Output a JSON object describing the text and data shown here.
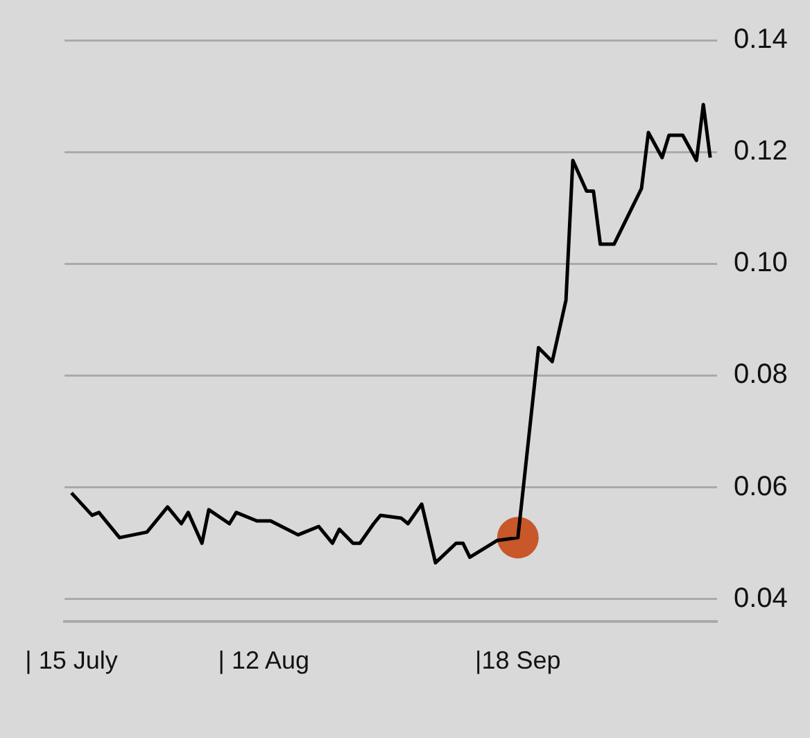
{
  "chart_data": {
    "type": "line",
    "x": [
      "--07-15",
      "--07-18",
      "--07-19",
      "--07-22",
      "--07-26",
      "--07-29",
      "--07-31",
      "--08-01",
      "--08-03",
      "--08-04",
      "--08-07",
      "--08-08",
      "--08-11",
      "--08-13",
      "--08-17",
      "--08-20",
      "--08-22",
      "--08-23",
      "--08-25",
      "--08-26",
      "--08-28",
      "--08-29",
      "--09-01",
      "--09-02",
      "--09-04",
      "--09-06",
      "--09-09",
      "--09-10",
      "--09-11",
      "--09-15",
      "--09-18",
      "--09-21",
      "--09-23",
      "--09-25",
      "--09-26",
      "--09-28",
      "--09-29",
      "--09-30",
      "--10-02",
      "--10-06",
      "--10-07",
      "--10-09",
      "--10-10",
      "--10-12",
      "--10-14",
      "--10-15",
      "--10-16"
    ],
    "series": [
      {
        "color": "#000000",
        "values": [
          0.059,
          0.055,
          0.0555,
          0.051,
          0.052,
          0.0565,
          0.0535,
          0.0555,
          0.05,
          0.056,
          0.0535,
          0.0555,
          0.054,
          0.054,
          0.0515,
          0.053,
          0.05,
          0.0525,
          0.05,
          0.05,
          0.0535,
          0.055,
          0.0545,
          0.0535,
          0.057,
          0.0465,
          0.05,
          0.05,
          0.0475,
          0.0505,
          0.051,
          0.085,
          0.0825,
          0.0935,
          0.1185,
          0.113,
          0.113,
          0.1035,
          0.1035,
          0.1135,
          0.1235,
          0.119,
          0.123,
          0.123,
          0.1185,
          0.1285,
          0.119
        ]
      },
      {
        "type": "scatter",
        "color": "#c8572a",
        "marker": "circle",
        "x": [
          "--09-18"
        ],
        "values": [
          0.051
        ]
      }
    ],
    "xlim": [
      "--07-14",
      "--10-17"
    ],
    "xticks": [
      {
        "value": "--07-15",
        "label": "| 15 July"
      },
      {
        "value": "--08-12",
        "label": "| 12 Aug"
      },
      {
        "value": "--09-18",
        "label": "|18 Sep"
      }
    ],
    "ylim": [
      0.036,
      0.14
    ],
    "yticks": [
      0.04,
      0.06,
      0.08,
      {
        "value": 0.1,
        "label": "0.10"
      },
      0.12,
      0.14
    ],
    "grid": "y",
    "legend": false,
    "marker": "none"
  }
}
